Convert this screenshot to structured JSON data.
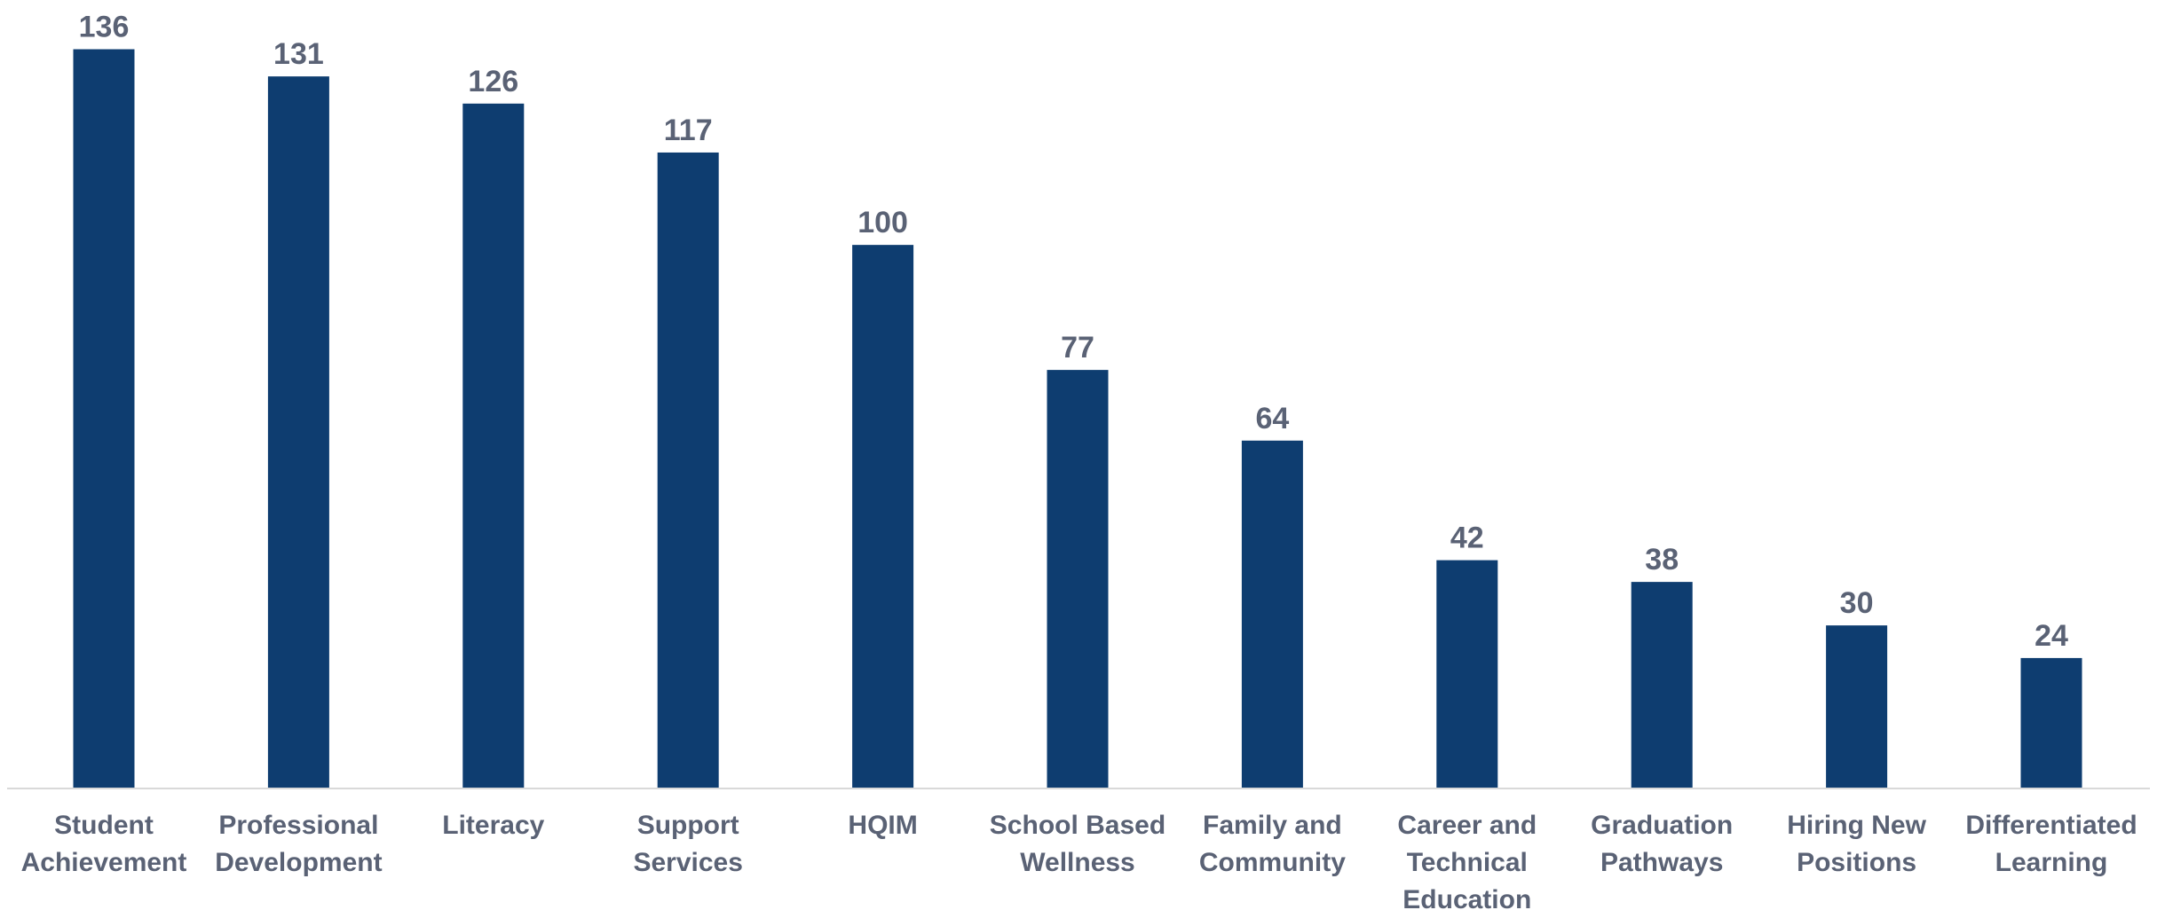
{
  "chart_data": {
    "type": "bar",
    "categories": [
      "Student Achievement",
      "Professional Development",
      "Literacy",
      "Support Services",
      "HQIM",
      "School Based Wellness",
      "Family and Community",
      "Career and Technical Education",
      "Graduation Pathways",
      "Hiring New Positions",
      "Differentiated Learning"
    ],
    "values": [
      136,
      131,
      126,
      117,
      100,
      77,
      64,
      42,
      38,
      30,
      24
    ],
    "color": "#0e3d70",
    "ylim": [
      0,
      140
    ]
  }
}
